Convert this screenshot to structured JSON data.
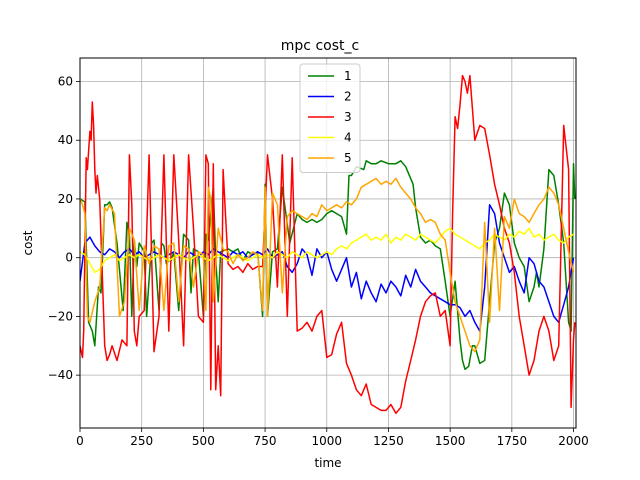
{
  "chart_data": {
    "type": "line",
    "title": "mpc cost_c",
    "xlabel": "time",
    "ylabel": "cost",
    "xlim": [
      0,
      2010
    ],
    "ylim": [
      -58,
      68
    ],
    "xticks": [
      0,
      250,
      500,
      750,
      1000,
      1250,
      1500,
      1750,
      2000
    ],
    "yticks": [
      -40,
      -20,
      0,
      20,
      40,
      60
    ],
    "grid": true,
    "legend_position": "top-center",
    "series": [
      {
        "name": "1",
        "color": "#008000",
        "x": [
          0,
          20,
          35,
          50,
          60,
          75,
          85,
          100,
          110,
          120,
          130,
          150,
          175,
          190,
          200,
          210,
          220,
          230,
          240,
          260,
          270,
          290,
          300,
          320,
          330,
          340,
          350,
          360,
          370,
          380,
          400,
          420,
          440,
          450,
          460,
          480,
          500,
          510,
          520,
          540,
          550,
          560,
          570,
          600,
          620,
          640,
          660,
          680,
          700,
          720,
          740,
          750,
          760,
          780,
          800,
          820,
          850,
          880,
          900,
          920,
          940,
          960,
          980,
          1000,
          1020,
          1040,
          1060,
          1080,
          1090,
          1100,
          1120,
          1150,
          1160,
          1180,
          1200,
          1220,
          1250,
          1280,
          1300,
          1320,
          1350,
          1360,
          1380,
          1400,
          1420,
          1440,
          1460,
          1480,
          1500,
          1520,
          1540,
          1550,
          1560,
          1575,
          1590,
          1600,
          1620,
          1640,
          1660,
          1680,
          1700,
          1720,
          1740,
          1760,
          1780,
          1800,
          1820,
          1840,
          1850,
          1860,
          1880,
          1900,
          1920,
          1940,
          1960,
          1980,
          1990,
          2000,
          2005
        ],
        "y": [
          20,
          19,
          -22,
          -25,
          -30,
          -10,
          -12,
          18,
          18,
          19,
          17,
          5,
          -18,
          12,
          8,
          -20,
          6,
          -3,
          5,
          2,
          -20,
          5,
          6,
          -18,
          5,
          4,
          -2,
          -1,
          -1,
          2,
          -18,
          8,
          6,
          -12,
          3,
          2,
          -20,
          8,
          6,
          24,
          0,
          -15,
          2,
          3,
          2,
          3,
          -1,
          2,
          1,
          2,
          -20,
          25,
          -20,
          2,
          3,
          24,
          5,
          15,
          13,
          12,
          13,
          12,
          13,
          15,
          16,
          15,
          14,
          8,
          28,
          28,
          31,
          30,
          33,
          32,
          32,
          33,
          32,
          32,
          33,
          31,
          25,
          17,
          7,
          5,
          6,
          4,
          3,
          -8,
          -20,
          -8,
          -28,
          -35,
          -38,
          -37,
          -30,
          -30,
          -36,
          -35,
          -15,
          5,
          10,
          22,
          18,
          5,
          0,
          -3,
          -15,
          -10,
          -5,
          -10,
          3,
          30,
          28,
          18,
          5,
          -22,
          -25,
          32,
          20
        ]
      },
      {
        "name": "2",
        "color": "#0000ff",
        "x": [
          0,
          20,
          40,
          60,
          80,
          100,
          120,
          140,
          160,
          180,
          200,
          220,
          240,
          260,
          280,
          300,
          320,
          340,
          360,
          380,
          400,
          420,
          440,
          460,
          480,
          500,
          520,
          540,
          560,
          580,
          600,
          620,
          640,
          660,
          680,
          700,
          720,
          740,
          760,
          780,
          800,
          820,
          840,
          860,
          880,
          900,
          920,
          940,
          960,
          980,
          1000,
          1020,
          1040,
          1060,
          1080,
          1100,
          1120,
          1140,
          1160,
          1180,
          1200,
          1220,
          1240,
          1260,
          1280,
          1300,
          1320,
          1340,
          1360,
          1380,
          1400,
          1420,
          1440,
          1460,
          1480,
          1500,
          1520,
          1540,
          1560,
          1580,
          1600,
          1620,
          1640,
          1660,
          1680,
          1700,
          1720,
          1740,
          1760,
          1780,
          1800,
          1820,
          1840,
          1860,
          1880,
          1900,
          1920,
          1940,
          1960,
          1980,
          2000
        ],
        "y": [
          -8,
          5,
          7,
          4,
          2,
          1,
          3,
          2,
          0,
          2,
          3,
          1,
          2,
          0,
          1,
          2,
          1,
          0,
          1,
          2,
          1,
          0,
          2,
          1,
          0,
          2,
          1,
          3,
          2,
          1,
          0,
          2,
          1,
          2,
          0,
          1,
          2,
          1,
          3,
          0,
          1,
          2,
          -3,
          -5,
          -2,
          3,
          1,
          -6,
          3,
          0,
          2,
          -4,
          -8,
          -4,
          0,
          -10,
          -5,
          -14,
          -8,
          -12,
          -15,
          -9,
          -12,
          -8,
          -10,
          -13,
          -6,
          -10,
          -4,
          -8,
          -10,
          -12,
          -13,
          -14,
          -15,
          -16,
          -16,
          -17,
          -20,
          -18,
          -22,
          -25,
          -10,
          18,
          15,
          5,
          0,
          -5,
          -3,
          -8,
          -12,
          0,
          -2,
          -8,
          -10,
          -15,
          -20,
          -22,
          -16,
          -10,
          0
        ]
      },
      {
        "name": "3",
        "color": "#ff0000",
        "x": [
          0,
          10,
          15,
          25,
          30,
          40,
          45,
          50,
          55,
          60,
          65,
          70,
          80,
          100,
          110,
          120,
          130,
          150,
          170,
          190,
          200,
          210,
          220,
          230,
          240,
          260,
          280,
          300,
          320,
          340,
          360,
          380,
          400,
          420,
          440,
          460,
          480,
          500,
          510,
          520,
          530,
          540,
          550,
          560,
          570,
          580,
          600,
          620,
          640,
          660,
          680,
          700,
          720,
          740,
          760,
          780,
          800,
          820,
          840,
          860,
          880,
          900,
          920,
          940,
          960,
          980,
          1000,
          1020,
          1040,
          1060,
          1080,
          1100,
          1120,
          1140,
          1160,
          1180,
          1200,
          1220,
          1240,
          1260,
          1280,
          1300,
          1320,
          1340,
          1360,
          1380,
          1400,
          1420,
          1440,
          1460,
          1480,
          1500,
          1510,
          1520,
          1530,
          1540,
          1550,
          1560,
          1570,
          1580,
          1600,
          1620,
          1640,
          1660,
          1680,
          1700,
          1720,
          1740,
          1760,
          1780,
          1800,
          1820,
          1840,
          1860,
          1880,
          1900,
          1920,
          1940,
          1960,
          1980,
          1990,
          2000,
          2005
        ],
        "y": [
          -30,
          -34,
          -25,
          34,
          30,
          43,
          40,
          53,
          45,
          30,
          22,
          28,
          20,
          -30,
          -35,
          -33,
          -30,
          -35,
          -28,
          -30,
          35,
          18,
          -25,
          -30,
          -20,
          -18,
          35,
          -32,
          -20,
          35,
          -25,
          35,
          6,
          -30,
          35,
          10,
          -20,
          -22,
          35,
          32,
          -45,
          32,
          -45,
          -30,
          -47,
          30,
          -2,
          -4,
          -3,
          -5,
          -2,
          -4,
          -3,
          -3,
          35,
          20,
          -10,
          35,
          -20,
          34,
          -25,
          -24,
          -22,
          -25,
          -20,
          -18,
          -34,
          -33,
          -26,
          -22,
          -36,
          -40,
          -45,
          -47,
          -43,
          -50,
          -51,
          -52,
          -52,
          -50,
          -53,
          -51,
          -42,
          -35,
          -28,
          -20,
          -15,
          -13,
          -12,
          -20,
          -18,
          -30,
          15,
          48,
          44,
          52,
          62,
          60,
          56,
          62,
          40,
          45,
          44,
          35,
          25,
          18,
          10,
          5,
          -5,
          -20,
          -30,
          -40,
          -35,
          -25,
          -20,
          -25,
          -35,
          -30,
          45,
          30,
          -51,
          -28,
          -22
        ]
      },
      {
        "name": "4",
        "color": "#ffff00",
        "x": [
          0,
          20,
          40,
          60,
          80,
          100,
          120,
          140,
          160,
          180,
          200,
          220,
          240,
          260,
          280,
          300,
          320,
          340,
          360,
          380,
          400,
          420,
          440,
          460,
          480,
          500,
          520,
          540,
          560,
          580,
          600,
          620,
          640,
          660,
          680,
          700,
          720,
          740,
          760,
          780,
          800,
          820,
          840,
          860,
          880,
          900,
          920,
          940,
          960,
          980,
          1000,
          1020,
          1040,
          1060,
          1080,
          1100,
          1120,
          1140,
          1160,
          1180,
          1200,
          1220,
          1240,
          1260,
          1280,
          1300,
          1320,
          1340,
          1360,
          1380,
          1400,
          1420,
          1440,
          1460,
          1480,
          1500,
          1520,
          1540,
          1560,
          1580,
          1600,
          1620,
          1640,
          1660,
          1680,
          1700,
          1720,
          1740,
          1760,
          1780,
          1800,
          1820,
          1840,
          1860,
          1880,
          1900,
          1920,
          1940,
          1960,
          1980,
          2000
        ],
        "y": [
          2,
          1,
          -2,
          -5,
          -4,
          -1,
          0,
          1,
          -1,
          0,
          1,
          0,
          1,
          0,
          -1,
          0,
          1,
          0,
          -1,
          0,
          1,
          0,
          -1,
          0,
          1,
          0,
          -1,
          0,
          1,
          0,
          -1,
          0,
          1,
          0,
          -1,
          0,
          1,
          0,
          1,
          0,
          2,
          1,
          0,
          2,
          1,
          0,
          2,
          1,
          0,
          1,
          2,
          1,
          3,
          4,
          3,
          5,
          6,
          7,
          8,
          6,
          7,
          6,
          8,
          5,
          7,
          6,
          8,
          7,
          6,
          8,
          7,
          6,
          5,
          7,
          9,
          10,
          8,
          7,
          6,
          5,
          4,
          3,
          5,
          6,
          8,
          7,
          6,
          8,
          7,
          9,
          8,
          10,
          7,
          8,
          6,
          7,
          8,
          6,
          5,
          7,
          8
        ]
      },
      {
        "name": "5",
        "color": "#ffa500",
        "x": [
          0,
          10,
          20,
          30,
          40,
          60,
          80,
          100,
          110,
          120,
          140,
          160,
          180,
          200,
          220,
          240,
          260,
          280,
          300,
          320,
          340,
          360,
          380,
          400,
          420,
          440,
          460,
          480,
          500,
          510,
          520,
          530,
          540,
          560,
          580,
          600,
          620,
          640,
          660,
          680,
          700,
          720,
          740,
          750,
          760,
          780,
          800,
          820,
          840,
          860,
          880,
          900,
          920,
          940,
          960,
          980,
          1000,
          1020,
          1040,
          1060,
          1080,
          1100,
          1120,
          1140,
          1160,
          1180,
          1200,
          1220,
          1240,
          1260,
          1280,
          1300,
          1320,
          1340,
          1360,
          1380,
          1400,
          1420,
          1440,
          1460,
          1480,
          1500,
          1520,
          1540,
          1560,
          1580,
          1600,
          1620,
          1640,
          1660,
          1680,
          1700,
          1720,
          1740,
          1760,
          1780,
          1800,
          1820,
          1840,
          1860,
          1880,
          1900,
          1920,
          1940,
          1960,
          1980,
          2000
        ],
        "y": [
          20,
          18,
          15,
          -20,
          -22,
          -15,
          -10,
          17,
          16,
          18,
          15,
          -20,
          -15,
          10,
          6,
          -18,
          4,
          -2,
          4,
          3,
          -18,
          4,
          5,
          -15,
          4,
          3,
          -10,
          2,
          1,
          -18,
          24,
          20,
          -15,
          10,
          3,
          2,
          -2,
          1,
          -1,
          0,
          2,
          1,
          -18,
          24,
          -20,
          22,
          18,
          -12,
          14,
          16,
          15,
          14,
          13,
          15,
          14,
          18,
          16,
          17,
          18,
          17,
          19,
          18,
          20,
          24,
          25,
          26,
          27,
          25,
          26,
          25,
          27,
          24,
          22,
          20,
          17,
          15,
          12,
          13,
          12,
          8,
          6,
          -5,
          -15,
          -20,
          -25,
          -30,
          -32,
          -28,
          12,
          -22,
          10,
          -18,
          14,
          10,
          20,
          15,
          14,
          12,
          15,
          18,
          20,
          24,
          22,
          18,
          10,
          2,
          -5
        ]
      }
    ]
  }
}
